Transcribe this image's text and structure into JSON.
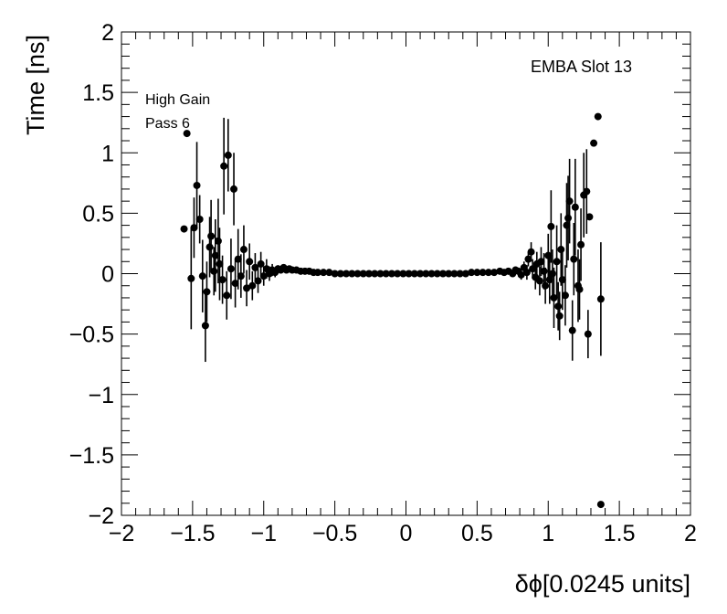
{
  "chart_data": {
    "type": "scatter",
    "xlabel": "δϕ[0.0245 units]",
    "ylabel": "Time [ns]",
    "xlim": [
      -2,
      2
    ],
    "ylim": [
      -2,
      2
    ],
    "x_ticks": [
      "−2",
      "−1.5",
      "−1",
      "−0.5",
      "0",
      "0.5",
      "1",
      "1.5",
      "2"
    ],
    "y_ticks": [
      "−2",
      "−1.5",
      "−1",
      "−0.5",
      "0",
      "0.5",
      "1",
      "1.5",
      "2"
    ],
    "annotations": {
      "slot": "EMBA Slot 13",
      "gain": "High Gain",
      "pass": "Pass 6"
    },
    "colors": {
      "marker": "#000000",
      "axis": "#000000",
      "background": "#ffffff"
    },
    "points": [
      {
        "x": -1.54,
        "y": 1.16,
        "err": 0.0
      },
      {
        "x": -1.56,
        "y": 0.37,
        "err": 0.0
      },
      {
        "x": -1.51,
        "y": -0.04,
        "err": 0.42
      },
      {
        "x": -1.49,
        "y": 0.38,
        "err": 0.25
      },
      {
        "x": -1.47,
        "y": 0.73,
        "err": 0.36
      },
      {
        "x": -1.45,
        "y": 0.45,
        "err": 0.2
      },
      {
        "x": -1.43,
        "y": -0.02,
        "err": 0.3
      },
      {
        "x": -1.41,
        "y": -0.43,
        "err": 0.3
      },
      {
        "x": -1.4,
        "y": -0.15,
        "err": 0.25
      },
      {
        "x": -1.38,
        "y": 0.22,
        "err": 0.25
      },
      {
        "x": -1.37,
        "y": 0.31,
        "err": 0.3
      },
      {
        "x": -1.35,
        "y": 0.02,
        "err": 0.2
      },
      {
        "x": -1.34,
        "y": 0.15,
        "err": 0.3
      },
      {
        "x": -1.32,
        "y": 0.27,
        "err": 0.35
      },
      {
        "x": -1.31,
        "y": 0.08,
        "err": 0.3
      },
      {
        "x": -1.29,
        "y": -0.05,
        "err": 0.2
      },
      {
        "x": -1.28,
        "y": 0.89,
        "err": 0.4
      },
      {
        "x": -1.26,
        "y": -0.18,
        "err": 0.2
      },
      {
        "x": -1.25,
        "y": 0.98,
        "err": 0.3
      },
      {
        "x": -1.23,
        "y": 0.04,
        "err": 0.25
      },
      {
        "x": -1.21,
        "y": 0.7,
        "err": 0.3
      },
      {
        "x": -1.2,
        "y": -0.08,
        "err": 0.2
      },
      {
        "x": -1.18,
        "y": 0.12,
        "err": 0.25
      },
      {
        "x": -1.16,
        "y": -0.02,
        "err": 0.18
      },
      {
        "x": -1.14,
        "y": 0.2,
        "err": 0.2
      },
      {
        "x": -1.12,
        "y": -0.12,
        "err": 0.15
      },
      {
        "x": -1.1,
        "y": 0.1,
        "err": 0.15
      },
      {
        "x": -1.08,
        "y": -0.1,
        "err": 0.12
      },
      {
        "x": -1.06,
        "y": 0.05,
        "err": 0.12
      },
      {
        "x": -1.04,
        "y": -0.06,
        "err": 0.1
      },
      {
        "x": -1.02,
        "y": 0.08,
        "err": 0.1
      },
      {
        "x": -1.0,
        "y": -0.02,
        "err": 0.08
      },
      {
        "x": -0.98,
        "y": 0.04,
        "err": 0.08
      },
      {
        "x": -0.96,
        "y": 0.0,
        "err": 0.06
      },
      {
        "x": -0.94,
        "y": 0.03,
        "err": 0.05
      },
      {
        "x": -0.92,
        "y": 0.01,
        "err": 0.04
      },
      {
        "x": -0.9,
        "y": 0.04,
        "err": 0.03
      },
      {
        "x": -0.88,
        "y": 0.03,
        "err": 0.03
      },
      {
        "x": -0.86,
        "y": 0.05,
        "err": 0.02
      },
      {
        "x": -0.84,
        "y": 0.03,
        "err": 0.02
      },
      {
        "x": -0.82,
        "y": 0.04,
        "err": 0.02
      },
      {
        "x": -0.8,
        "y": 0.03,
        "err": 0.02
      },
      {
        "x": -0.77,
        "y": 0.03,
        "err": 0.01
      },
      {
        "x": -0.74,
        "y": 0.02,
        "err": 0.01
      },
      {
        "x": -0.71,
        "y": 0.02,
        "err": 0.01
      },
      {
        "x": -0.68,
        "y": 0.02,
        "err": 0.01
      },
      {
        "x": -0.65,
        "y": 0.01,
        "err": 0.01
      },
      {
        "x": -0.62,
        "y": 0.01,
        "err": 0.01
      },
      {
        "x": -0.58,
        "y": 0.01,
        "err": 0.0
      },
      {
        "x": -0.54,
        "y": 0.01,
        "err": 0.0
      },
      {
        "x": -0.5,
        "y": 0.0,
        "err": 0.0
      },
      {
        "x": -0.46,
        "y": 0.0,
        "err": 0.0
      },
      {
        "x": -0.42,
        "y": 0.0,
        "err": 0.0
      },
      {
        "x": -0.38,
        "y": 0.0,
        "err": 0.0
      },
      {
        "x": -0.34,
        "y": 0.0,
        "err": 0.0
      },
      {
        "x": -0.3,
        "y": 0.0,
        "err": 0.0
      },
      {
        "x": -0.26,
        "y": 0.0,
        "err": 0.0
      },
      {
        "x": -0.22,
        "y": 0.0,
        "err": 0.0
      },
      {
        "x": -0.18,
        "y": 0.0,
        "err": 0.0
      },
      {
        "x": -0.14,
        "y": 0.0,
        "err": 0.0
      },
      {
        "x": -0.1,
        "y": 0.0,
        "err": 0.0
      },
      {
        "x": -0.06,
        "y": 0.0,
        "err": 0.0
      },
      {
        "x": -0.02,
        "y": 0.0,
        "err": 0.0
      },
      {
        "x": 0.02,
        "y": 0.0,
        "err": 0.0
      },
      {
        "x": 0.06,
        "y": 0.0,
        "err": 0.0
      },
      {
        "x": 0.1,
        "y": 0.0,
        "err": 0.0
      },
      {
        "x": 0.14,
        "y": 0.0,
        "err": 0.0
      },
      {
        "x": 0.18,
        "y": 0.0,
        "err": 0.0
      },
      {
        "x": 0.22,
        "y": 0.0,
        "err": 0.0
      },
      {
        "x": 0.26,
        "y": 0.0,
        "err": 0.0
      },
      {
        "x": 0.3,
        "y": 0.0,
        "err": 0.0
      },
      {
        "x": 0.34,
        "y": 0.0,
        "err": 0.0
      },
      {
        "x": 0.38,
        "y": 0.0,
        "err": 0.0
      },
      {
        "x": 0.42,
        "y": 0.0,
        "err": 0.0
      },
      {
        "x": 0.46,
        "y": 0.01,
        "err": 0.0
      },
      {
        "x": 0.5,
        "y": 0.01,
        "err": 0.0
      },
      {
        "x": 0.54,
        "y": 0.01,
        "err": 0.0
      },
      {
        "x": 0.58,
        "y": 0.01,
        "err": 0.01
      },
      {
        "x": 0.62,
        "y": 0.01,
        "err": 0.01
      },
      {
        "x": 0.66,
        "y": 0.02,
        "err": 0.01
      },
      {
        "x": 0.69,
        "y": 0.01,
        "err": 0.01
      },
      {
        "x": 0.72,
        "y": 0.02,
        "err": 0.02
      },
      {
        "x": 0.75,
        "y": 0.0,
        "err": 0.02
      },
      {
        "x": 0.77,
        "y": 0.03,
        "err": 0.02
      },
      {
        "x": 0.79,
        "y": 0.02,
        "err": 0.03
      },
      {
        "x": 0.81,
        "y": -0.01,
        "err": 0.04
      },
      {
        "x": 0.83,
        "y": 0.05,
        "err": 0.05
      },
      {
        "x": 0.85,
        "y": 0.01,
        "err": 0.06
      },
      {
        "x": 0.86,
        "y": 0.12,
        "err": 0.06
      },
      {
        "x": 0.88,
        "y": 0.18,
        "err": 0.08
      },
      {
        "x": 0.89,
        "y": 0.04,
        "err": 0.08
      },
      {
        "x": 0.91,
        "y": -0.03,
        "err": 0.1
      },
      {
        "x": 0.92,
        "y": 0.08,
        "err": 0.1
      },
      {
        "x": 0.94,
        "y": -0.06,
        "err": 0.12
      },
      {
        "x": 0.95,
        "y": 0.1,
        "err": 0.12
      },
      {
        "x": 0.97,
        "y": 0.02,
        "err": 0.15
      },
      {
        "x": 0.98,
        "y": -0.1,
        "err": 0.15
      },
      {
        "x": 1.0,
        "y": 0.15,
        "err": 0.18
      },
      {
        "x": 1.01,
        "y": -0.05,
        "err": 0.2
      },
      {
        "x": 1.02,
        "y": 0.39,
        "err": 0.3
      },
      {
        "x": 1.03,
        "y": 0.0,
        "err": 0.2
      },
      {
        "x": 1.04,
        "y": -0.2,
        "err": 0.25
      },
      {
        "x": 1.06,
        "y": 0.1,
        "err": 0.3
      },
      {
        "x": 1.07,
        "y": -0.27,
        "err": 0.2
      },
      {
        "x": 1.08,
        "y": -0.35,
        "err": 0.2
      },
      {
        "x": 1.09,
        "y": 0.2,
        "err": 0.3
      },
      {
        "x": 1.1,
        "y": -0.05,
        "err": 0.25
      },
      {
        "x": 1.12,
        "y": -0.18,
        "err": 0.25
      },
      {
        "x": 1.13,
        "y": 0.4,
        "err": 0.35
      },
      {
        "x": 1.14,
        "y": 0.46,
        "err": 0.35
      },
      {
        "x": 1.15,
        "y": 0.6,
        "err": 0.35
      },
      {
        "x": 1.17,
        "y": -0.47,
        "err": 0.25
      },
      {
        "x": 1.18,
        "y": 0.12,
        "err": 0.3
      },
      {
        "x": 1.19,
        "y": 0.55,
        "err": 0.4
      },
      {
        "x": 1.21,
        "y": -0.1,
        "err": 0.3
      },
      {
        "x": 1.22,
        "y": -0.13,
        "err": 0.25
      },
      {
        "x": 1.23,
        "y": 0.24,
        "err": 0.3
      },
      {
        "x": 1.25,
        "y": 0.65,
        "err": 0.35
      },
      {
        "x": 1.27,
        "y": 0.68,
        "err": 0.35
      },
      {
        "x": 1.28,
        "y": -0.5,
        "err": 0.2
      },
      {
        "x": 1.29,
        "y": 0.47,
        "err": 0.0
      },
      {
        "x": 1.32,
        "y": 1.08,
        "err": 0.0
      },
      {
        "x": 1.35,
        "y": 1.3,
        "err": 0.0
      },
      {
        "x": 1.37,
        "y": -0.21,
        "err": 0.47
      },
      {
        "x": 1.37,
        "y": -1.91,
        "err": 0.0
      }
    ]
  }
}
